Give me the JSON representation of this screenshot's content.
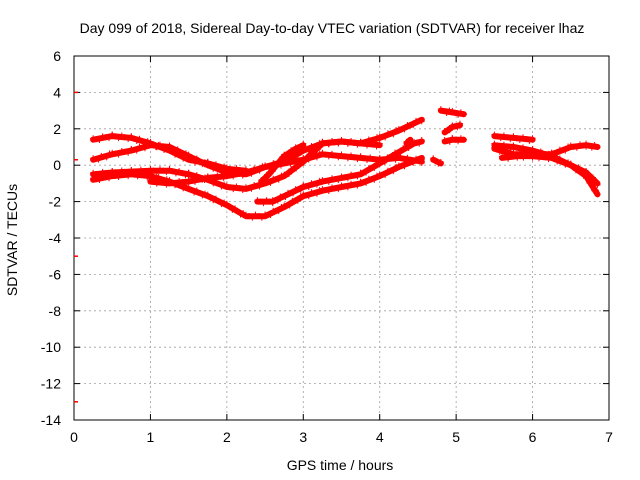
{
  "chart_data": {
    "type": "scatter",
    "title": "Day 099 of 2018, Sidereal Day-to-day VTEC variation (SDTVAR) for receiver lhaz",
    "xlabel": "GPS time / hours",
    "ylabel": "SDTVAR / TECUs",
    "xlim": [
      0,
      7
    ],
    "ylim": [
      -14,
      6
    ],
    "x_ticks": [
      0,
      1,
      2,
      3,
      4,
      5,
      6,
      7
    ],
    "y_ticks": [
      -14,
      -12,
      -10,
      -8,
      -6,
      -4,
      -2,
      0,
      2,
      4,
      6
    ],
    "grid": true,
    "marker_color": "#ff0000",
    "tracks": [
      {
        "name": "track-1",
        "points": [
          [
            0.25,
            1.4
          ],
          [
            0.5,
            1.6
          ],
          [
            0.75,
            1.5
          ],
          [
            1.0,
            1.2
          ],
          [
            1.25,
            0.8
          ],
          [
            1.5,
            0.3
          ],
          [
            1.75,
            0.1
          ],
          [
            2.0,
            -0.2
          ],
          [
            2.25,
            -0.3
          ]
        ]
      },
      {
        "name": "track-2",
        "points": [
          [
            0.25,
            0.3
          ],
          [
            0.5,
            0.6
          ],
          [
            0.75,
            0.8
          ],
          [
            1.0,
            1.1
          ],
          [
            1.25,
            1.0
          ],
          [
            1.5,
            0.5
          ],
          [
            1.75,
            0.0
          ],
          [
            2.0,
            -0.4
          ],
          [
            2.25,
            -0.5
          ],
          [
            2.5,
            -0.1
          ],
          [
            2.75,
            0.1
          ],
          [
            3.0,
            0.3
          ],
          [
            3.25,
            0.6
          ],
          [
            3.5,
            0.5
          ],
          [
            3.75,
            0.4
          ],
          [
            4.0,
            0.3
          ],
          [
            4.25,
            0.4
          ],
          [
            4.55,
            0.2
          ]
        ]
      },
      {
        "name": "track-3",
        "points": [
          [
            0.25,
            -0.8
          ],
          [
            0.5,
            -0.6
          ],
          [
            0.75,
            -0.5
          ],
          [
            1.0,
            -0.6
          ],
          [
            1.25,
            -0.9
          ],
          [
            1.5,
            -1.3
          ],
          [
            1.75,
            -1.7
          ],
          [
            2.0,
            -2.2
          ],
          [
            2.25,
            -2.8
          ],
          [
            2.5,
            -2.8
          ],
          [
            2.75,
            -2.3
          ],
          [
            3.0,
            -1.7
          ],
          [
            3.25,
            -1.4
          ],
          [
            3.5,
            -1.2
          ],
          [
            3.75,
            -1.0
          ],
          [
            4.0,
            -0.6
          ],
          [
            4.25,
            -0.1
          ],
          [
            4.55,
            0.4
          ]
        ]
      },
      {
        "name": "track-4",
        "points": [
          [
            0.25,
            -0.5
          ],
          [
            0.5,
            -0.4
          ],
          [
            0.75,
            -0.35
          ],
          [
            1.0,
            -0.3
          ],
          [
            1.25,
            -0.3
          ],
          [
            1.5,
            -0.5
          ],
          [
            1.75,
            -0.8
          ],
          [
            2.0,
            -1.2
          ],
          [
            2.25,
            -1.3
          ],
          [
            2.5,
            -1.0
          ],
          [
            2.75,
            -0.6
          ],
          [
            3.0,
            0.2
          ],
          [
            3.25,
            1.2
          ],
          [
            3.5,
            1.3
          ],
          [
            3.75,
            1.2
          ],
          [
            4.0,
            1.5
          ],
          [
            4.25,
            1.9
          ],
          [
            4.55,
            2.5
          ]
        ]
      },
      {
        "name": "track-5",
        "points": [
          [
            1.0,
            -0.9
          ],
          [
            1.25,
            -1.0
          ],
          [
            1.5,
            -0.9
          ],
          [
            1.75,
            -0.7
          ],
          [
            2.0,
            -0.6
          ],
          [
            2.25,
            -0.4
          ],
          [
            2.5,
            -0.1
          ],
          [
            2.75,
            0.2
          ],
          [
            3.0,
            0.8
          ],
          [
            3.25,
            1.2
          ],
          [
            3.5,
            1.3
          ],
          [
            3.75,
            1.2
          ],
          [
            4.0,
            1.1
          ]
        ]
      },
      {
        "name": "track-6",
        "points": [
          [
            2.4,
            -2.0
          ],
          [
            2.6,
            -2.0
          ],
          [
            2.8,
            -1.6
          ],
          [
            3.0,
            -1.2
          ],
          [
            3.25,
            -0.9
          ],
          [
            3.5,
            -0.7
          ],
          [
            3.75,
            -0.5
          ],
          [
            4.0,
            0.1
          ],
          [
            4.2,
            0.6
          ],
          [
            4.45,
            1.2
          ],
          [
            4.55,
            1.3
          ]
        ]
      },
      {
        "name": "track-7",
        "points": [
          [
            2.45,
            -0.9
          ],
          [
            2.55,
            -0.5
          ],
          [
            2.65,
            0.0
          ],
          [
            2.75,
            0.5
          ],
          [
            2.9,
            0.9
          ],
          [
            3.0,
            1.1
          ]
        ]
      },
      {
        "name": "track-8",
        "points": [
          [
            4.8,
            3.0
          ],
          [
            4.95,
            2.9
          ],
          [
            5.1,
            2.8
          ]
        ]
      },
      {
        "name": "track-9",
        "points": [
          [
            4.85,
            1.8
          ],
          [
            4.95,
            2.1
          ],
          [
            5.05,
            2.2
          ]
        ]
      },
      {
        "name": "track-10",
        "points": [
          [
            4.85,
            1.3
          ],
          [
            4.95,
            1.4
          ],
          [
            5.1,
            1.4
          ]
        ]
      },
      {
        "name": "track-11",
        "points": [
          [
            4.7,
            0.3
          ],
          [
            4.8,
            0.1
          ]
        ]
      },
      {
        "name": "track-12",
        "points": [
          [
            4.35,
            1.2
          ],
          [
            4.4,
            1.4
          ]
        ]
      },
      {
        "name": "track-13",
        "points": [
          [
            5.5,
            1.6
          ],
          [
            5.75,
            1.5
          ],
          [
            6.0,
            1.4
          ]
        ]
      },
      {
        "name": "track-14",
        "points": [
          [
            5.5,
            1.1
          ],
          [
            5.75,
            1.0
          ],
          [
            6.0,
            0.8
          ],
          [
            6.25,
            0.5
          ],
          [
            6.5,
            0.0
          ],
          [
            6.7,
            -0.6
          ],
          [
            6.85,
            -1.6
          ]
        ]
      },
      {
        "name": "track-15",
        "points": [
          [
            5.5,
            0.9
          ],
          [
            5.75,
            0.6
          ],
          [
            6.0,
            0.6
          ],
          [
            6.25,
            0.6
          ],
          [
            6.5,
            1.0
          ],
          [
            6.7,
            1.1
          ],
          [
            6.85,
            1.0
          ]
        ]
      },
      {
        "name": "track-16",
        "points": [
          [
            5.6,
            0.4
          ],
          [
            5.8,
            0.5
          ],
          [
            6.0,
            0.5
          ],
          [
            6.25,
            0.4
          ],
          [
            6.5,
            0.0
          ],
          [
            6.7,
            -0.4
          ],
          [
            6.85,
            -1.0
          ]
        ]
      }
    ],
    "edge_markers_y": [
      4,
      0.3,
      -5,
      -13
    ]
  }
}
